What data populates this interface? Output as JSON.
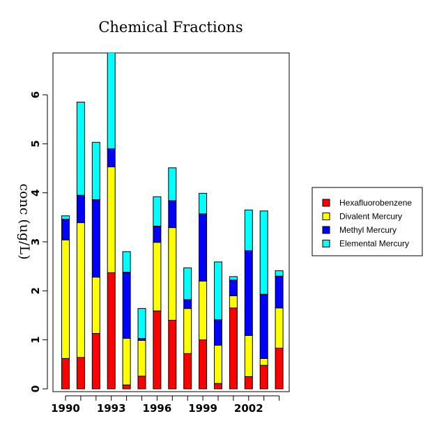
{
  "chart_data": {
    "type": "bar",
    "stacked": true,
    "title": "Chemical Fractions",
    "xlabel": "",
    "ylabel": "conc (ug/L)",
    "ylim": [
      0,
      6.8
    ],
    "yticks": [
      0,
      1,
      2,
      3,
      4,
      5,
      6
    ],
    "xtick_labels": [
      "1990",
      "1993",
      "1996",
      "1999",
      "2002"
    ],
    "categories": [
      1990,
      1991,
      1992,
      1993,
      1994,
      1995,
      1996,
      1997,
      1998,
      1999,
      2000,
      2001,
      2002,
      2003,
      2004
    ],
    "series": [
      {
        "name": "Hexafluorobenzene",
        "color": "#ff0000",
        "values": [
          0.62,
          0.64,
          1.13,
          2.37,
          0.08,
          0.26,
          1.59,
          1.4,
          0.72,
          1.0,
          0.11,
          1.65,
          0.25,
          0.48,
          0.83
        ]
      },
      {
        "name": "Divalent Mercury",
        "color": "#ffff00",
        "values": [
          2.42,
          2.75,
          1.15,
          2.16,
          0.95,
          0.73,
          1.4,
          1.89,
          0.92,
          1.2,
          0.78,
          0.25,
          0.84,
          0.14,
          0.82
        ]
      },
      {
        "name": "Methyl Mercury",
        "color": "#0000ff",
        "values": [
          0.42,
          0.56,
          1.58,
          0.37,
          1.35,
          0.04,
          0.33,
          0.55,
          0.18,
          1.37,
          0.52,
          0.32,
          1.73,
          1.31,
          0.65
        ]
      },
      {
        "name": "Elemental Mercury",
        "color": "#00ffff",
        "values": [
          0.07,
          1.9,
          1.17,
          2.0,
          0.42,
          0.61,
          0.6,
          0.67,
          0.65,
          0.42,
          1.18,
          0.07,
          0.83,
          1.7,
          0.11
        ]
      }
    ],
    "legend": {
      "position": "right"
    },
    "grid": false
  }
}
